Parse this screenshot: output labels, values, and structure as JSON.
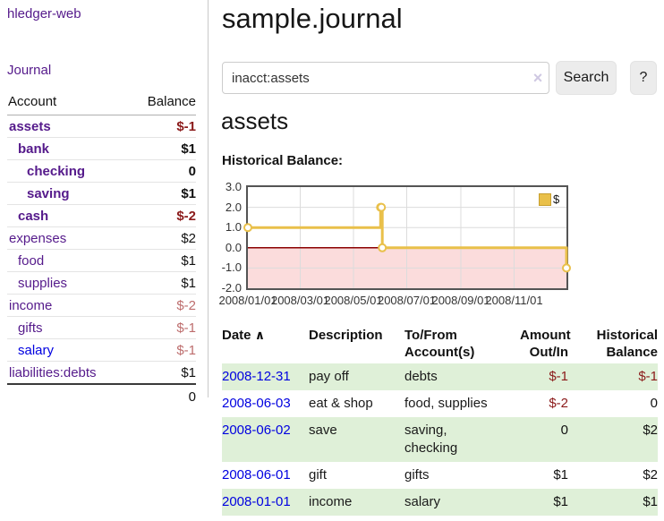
{
  "app_title": "hledger-web",
  "sidebar": {
    "journal_link": "Journal",
    "accounts": {
      "col_account": "Account",
      "col_balance": "Balance",
      "rows": [
        {
          "name": "assets",
          "balance": "$-1",
          "indent": 0,
          "bold": true,
          "tone": "neg-strong"
        },
        {
          "name": "bank",
          "balance": "$1",
          "indent": 1,
          "bold": true,
          "tone": "pos"
        },
        {
          "name": "checking",
          "balance": "0",
          "indent": 2,
          "bold": true,
          "tone": "pos"
        },
        {
          "name": "saving",
          "balance": "$1",
          "indent": 2,
          "bold": true,
          "tone": "pos"
        },
        {
          "name": "cash",
          "balance": "$-2",
          "indent": 1,
          "bold": true,
          "tone": "neg-strong"
        },
        {
          "name": "expenses",
          "balance": "$2",
          "indent": 0,
          "bold": false,
          "tone": "pos"
        },
        {
          "name": "food",
          "balance": "$1",
          "indent": 1,
          "bold": false,
          "tone": "pos"
        },
        {
          "name": "supplies",
          "balance": "$1",
          "indent": 1,
          "bold": false,
          "tone": "pos"
        },
        {
          "name": "income",
          "balance": "$-2",
          "indent": 0,
          "bold": false,
          "tone": "neg-soft"
        },
        {
          "name": "gifts",
          "balance": "$-1",
          "indent": 1,
          "bold": false,
          "tone": "neg-soft"
        },
        {
          "name": "salary",
          "balance": "$-1",
          "indent": 1,
          "bold": false,
          "tone": "neg-soft",
          "link_style": "blue"
        },
        {
          "name": "liabilities:debts",
          "balance": "$1",
          "indent": 0,
          "bold": false,
          "tone": "pos"
        }
      ],
      "total": "0"
    }
  },
  "header": {
    "title": "sample.journal",
    "search": {
      "value": "inacct:assets",
      "clear_icon": "×",
      "search_button": "Search",
      "help_button": "?"
    }
  },
  "account_page": {
    "heading": "assets",
    "chart_label": "Historical Balance:"
  },
  "chart_data": {
    "type": "line",
    "step": true,
    "title": "Historical Balance",
    "x_range": [
      "2008-01-01",
      "2008-12-31"
    ],
    "y_range": [
      -2,
      3
    ],
    "x_ticks": [
      {
        "date": "2008-01-01",
        "label": "2008/01/01"
      },
      {
        "date": "2008-03-01",
        "label": "2008/03/01"
      },
      {
        "date": "2008-05-01",
        "label": "2008/05/01"
      },
      {
        "date": "2008-07-01",
        "label": "2008/07/01"
      },
      {
        "date": "2008-09-01",
        "label": "2008/09/01"
      },
      {
        "date": "2008-11-01",
        "label": "2008/11/01"
      }
    ],
    "y_ticks": [
      {
        "value": 3,
        "label": "3.0"
      },
      {
        "value": 2,
        "label": "2.0"
      },
      {
        "value": 1,
        "label": "1.0"
      },
      {
        "value": 0,
        "label": "0.0"
      },
      {
        "value": -1,
        "label": "-1.0"
      },
      {
        "value": -2,
        "label": "-2.0"
      }
    ],
    "legend": [
      {
        "label": "$",
        "color": "#e9c04a"
      }
    ],
    "legend_position": "top-right",
    "grid": true,
    "negative_region_color": "#fbdcdc",
    "zero_line_color": "#8b0000",
    "series": [
      {
        "name": "$",
        "color": "#e9c04a",
        "marker_fill": "#ffffff",
        "points": [
          {
            "date": "2008-01-01",
            "value": 1
          },
          {
            "date": "2008-06-01",
            "value": 2
          },
          {
            "date": "2008-06-02",
            "value": 2
          },
          {
            "date": "2008-06-03",
            "value": 0
          },
          {
            "date": "2008-12-31",
            "value": -1
          }
        ]
      }
    ]
  },
  "register": {
    "sort_icon": "∧",
    "columns": [
      {
        "label": "Date"
      },
      {
        "label": "Description"
      },
      {
        "label": "To/From Account(s)"
      },
      {
        "label": "Amount Out/In"
      },
      {
        "label": "Historical Balance"
      }
    ],
    "rows": [
      {
        "date": "2008-12-31",
        "description": "pay off",
        "accounts": "debts",
        "amount": "$-1",
        "amount_tone": "neg-strong",
        "balance": "$-1",
        "balance_tone": "neg-strong"
      },
      {
        "date": "2008-06-03",
        "description": "eat & shop",
        "accounts": "food, supplies",
        "amount": "$-2",
        "amount_tone": "neg-strong",
        "balance": "0",
        "balance_tone": "pos"
      },
      {
        "date": "2008-06-02",
        "description": "save",
        "accounts": "saving,\nchecking",
        "amount": "0",
        "amount_tone": "pos",
        "balance": "$2",
        "balance_tone": "pos"
      },
      {
        "date": "2008-06-01",
        "description": "gift",
        "accounts": "gifts",
        "amount": "$1",
        "amount_tone": "pos",
        "balance": "$2",
        "balance_tone": "pos"
      },
      {
        "date": "2008-01-01",
        "description": "income",
        "accounts": "salary",
        "amount": "$1",
        "amount_tone": "pos",
        "balance": "$1",
        "balance_tone": "pos"
      }
    ]
  }
}
